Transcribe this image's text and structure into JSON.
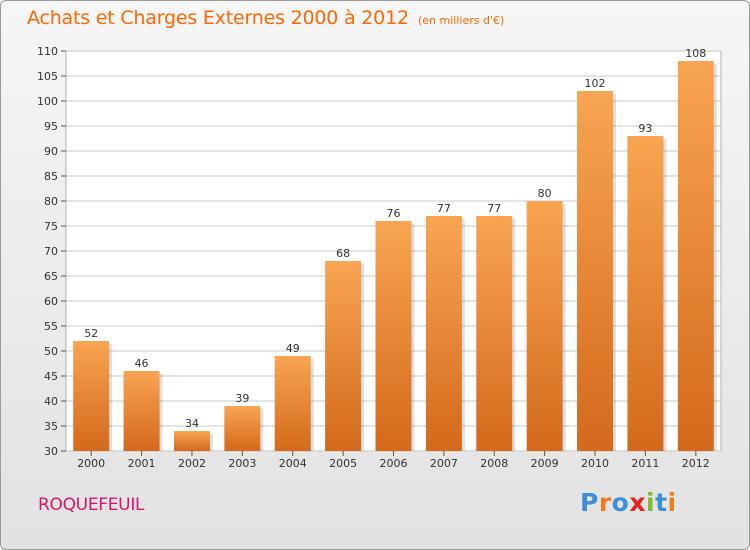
{
  "header": {
    "title": "Achats et Charges Externes 2000 à 2012",
    "unit": "(en milliers d'€)"
  },
  "footer": {
    "commune": "ROQUEFEUIL",
    "logo": "Proxiti"
  },
  "colors": {
    "title": "#ff6600",
    "commune": "#d8146e",
    "bar_top": "#f8a552",
    "bar_bottom": "#d4691b",
    "logo_letters": [
      "#3a8fd8",
      "#f07c1e",
      "#3a8fd8",
      "#e8221e",
      "#7bbd2e",
      "#3a8fd8",
      "#f07c1e"
    ]
  },
  "chart_data": {
    "type": "bar",
    "title": "Achats et Charges Externes 2000 à 2012",
    "subtitle": "(en milliers d'€)",
    "categories": [
      "2000",
      "2001",
      "2002",
      "2003",
      "2004",
      "2005",
      "2006",
      "2007",
      "2008",
      "2009",
      "2010",
      "2011",
      "2012"
    ],
    "values": [
      52,
      46,
      34,
      39,
      49,
      68,
      76,
      77,
      77,
      80,
      102,
      93,
      108
    ],
    "ylim": [
      30,
      110
    ],
    "yticks": [
      30,
      35,
      40,
      45,
      50,
      55,
      60,
      65,
      70,
      75,
      80,
      85,
      90,
      95,
      100,
      105,
      110
    ],
    "grid": true,
    "data_labels": true
  }
}
